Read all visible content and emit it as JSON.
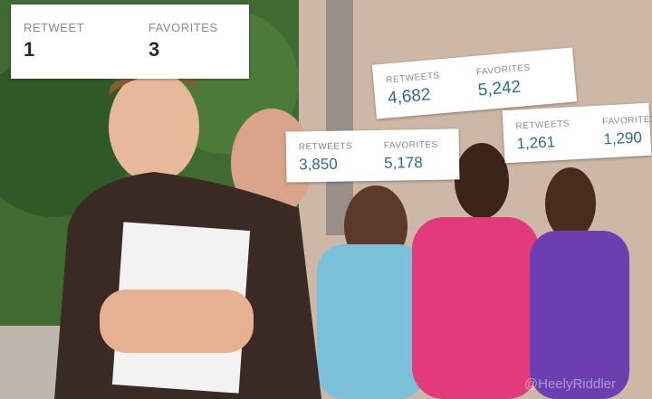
{
  "cards": [
    {
      "retweets_label": "RETWEET",
      "retweets_value": "1",
      "favorites_label": "FAVORITES",
      "favorites_value": "3"
    },
    {
      "retweets_label": "RETWEETS",
      "retweets_value": "4,682",
      "favorites_label": "FAVORITES",
      "favorites_value": "5,242"
    },
    {
      "retweets_label": "RETWEETS",
      "retweets_value": "3,850",
      "favorites_label": "FAVORITES",
      "favorites_value": "5,178"
    },
    {
      "retweets_label": "RETWEETS",
      "retweets_value": "1,261",
      "favorites_label": "FAVORITES",
      "favorites_value": "1,290"
    }
  ],
  "watermark": "@HeelyRiddler"
}
